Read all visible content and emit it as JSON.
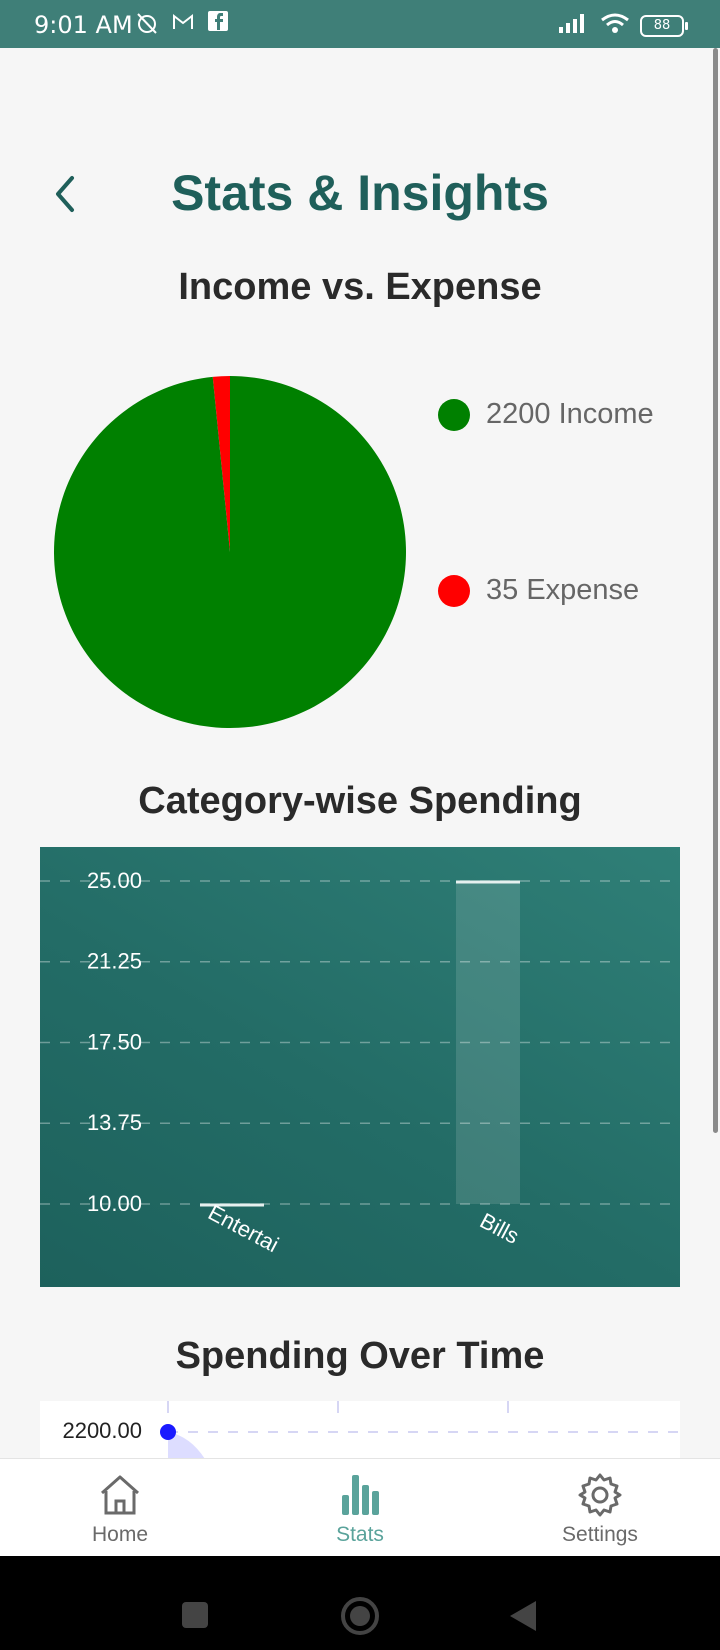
{
  "status_bar": {
    "time": "9:01 AM",
    "battery": "88"
  },
  "header": {
    "title": "Stats & Insights"
  },
  "income_expense": {
    "title": "Income vs. Expense",
    "legend": [
      {
        "label": "2200 Income",
        "color": "#008000"
      },
      {
        "label": "35 Expense",
        "color": "#ff0000"
      }
    ]
  },
  "category": {
    "title": "Category-wise Spending"
  },
  "spending_time": {
    "title": "Spending Over Time"
  },
  "nav": {
    "home": "Home",
    "stats": "Stats",
    "settings": "Settings",
    "active_color": "#5aa39b",
    "inactive_color": "#6a6a6a"
  },
  "chart_data": [
    {
      "type": "pie",
      "title": "Income vs. Expense",
      "labels": [
        "Income",
        "Expense"
      ],
      "values": [
        2200,
        35
      ],
      "colors": [
        "#008000",
        "#ff0000"
      ]
    },
    {
      "type": "bar",
      "title": "Category-wise Spending",
      "categories": [
        "Entertai",
        "Bills"
      ],
      "values": [
        10,
        25
      ],
      "yticks": [
        "25.00",
        "21.25",
        "17.50",
        "13.75",
        "10.00"
      ],
      "ylim": [
        10,
        25
      ],
      "grid": true
    },
    {
      "type": "line",
      "title": "Spending Over Time",
      "yticks": [
        "2200.00"
      ],
      "values": [
        2200
      ],
      "point_color": "#1a1aff"
    }
  ]
}
